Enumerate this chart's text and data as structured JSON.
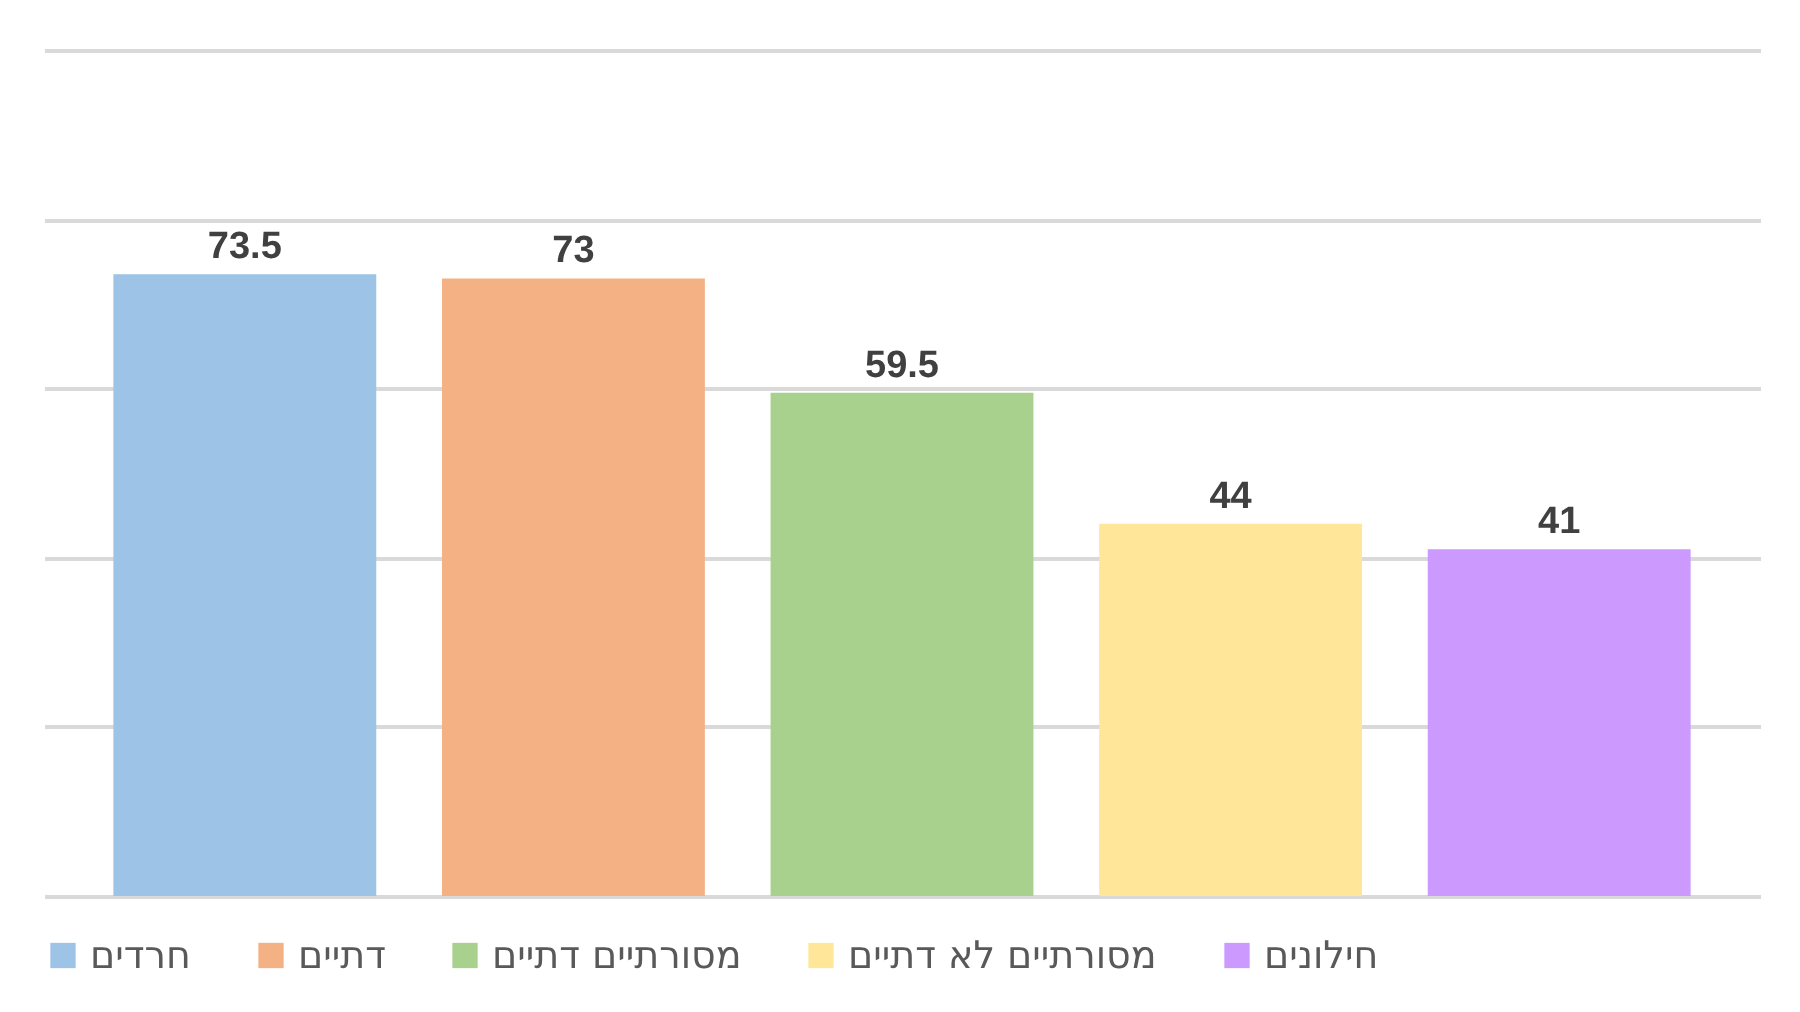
{
  "chart_data": {
    "type": "bar",
    "categories": [
      null
    ],
    "series": [
      {
        "name": "חרדים",
        "color": "#9dc3e6",
        "values": [
          73.5
        ]
      },
      {
        "name": "דתיים",
        "color": "#f4b183",
        "values": [
          73
        ]
      },
      {
        "name": "מסורתיים דתיים",
        "color": "#a9d18e",
        "values": [
          59.5
        ]
      },
      {
        "name": "מסורתיים לא דתיים",
        "color": "#ffe699",
        "values": [
          44
        ]
      },
      {
        "name": "חילונים",
        "color": "#cc99ff",
        "values": [
          41
        ]
      }
    ],
    "ylim": [
      0,
      100
    ],
    "yticks": [
      {
        "value": 0,
        "label": null
      },
      {
        "value": 20,
        "label": null
      },
      {
        "value": 40,
        "label": null
      },
      {
        "value": 60,
        "label": null
      },
      {
        "value": 80,
        "label": null
      },
      {
        "value": 100,
        "label": null
      }
    ],
    "grid": "y",
    "legend": "bottom",
    "data_labels": true
  }
}
